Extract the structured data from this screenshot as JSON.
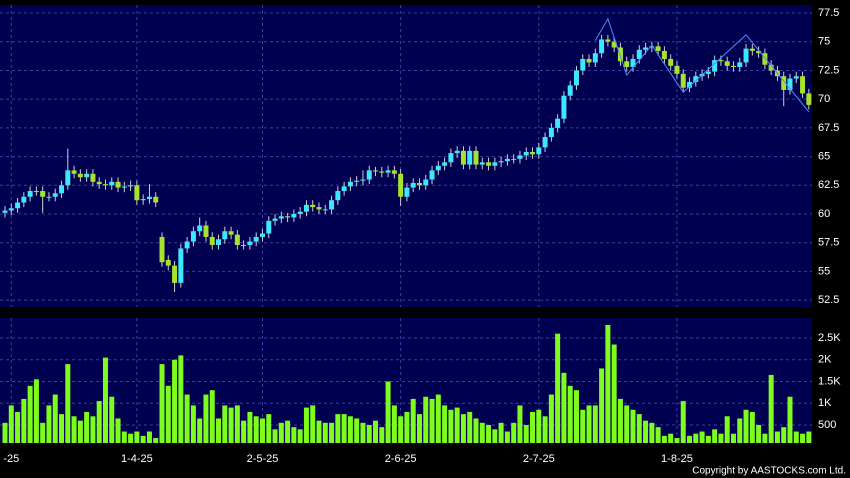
{
  "chart_data": {
    "type": "candlestick",
    "categories": [
      null,
      "-25",
      null,
      null,
      null,
      null,
      null,
      null,
      null,
      null,
      null,
      null,
      null,
      null,
      null,
      null,
      null,
      null,
      null,
      null,
      null,
      "1-4-25",
      null,
      null,
      null,
      null,
      null,
      null,
      null,
      null,
      null,
      null,
      null,
      null,
      null,
      null,
      null,
      null,
      null,
      null,
      null,
      "2-5-25",
      null,
      null,
      null,
      null,
      null,
      null,
      null,
      null,
      null,
      null,
      null,
      null,
      null,
      null,
      null,
      null,
      null,
      null,
      null,
      null,
      null,
      "2-6-25",
      null,
      null,
      null,
      null,
      null,
      null,
      null,
      null,
      null,
      null,
      null,
      null,
      null,
      null,
      null,
      null,
      null,
      null,
      null,
      null,
      null,
      "2-7-25",
      null,
      null,
      null,
      null,
      null,
      null,
      null,
      null,
      null,
      null,
      null,
      null,
      null,
      null,
      null,
      null,
      null,
      null,
      null,
      null,
      null,
      "1-8-25",
      null,
      null,
      null,
      null,
      null,
      null,
      null,
      null,
      null,
      null,
      null,
      null,
      null,
      null,
      null,
      null,
      null,
      null,
      null,
      null,
      null
    ],
    "open": [
      60.1,
      60.3,
      60.5,
      61,
      61.5,
      62,
      62,
      61.5,
      61.5,
      61.8,
      62.5,
      63.8,
      63.5,
      63.2,
      63.5,
      62.8,
      62.6,
      62.5,
      62.8,
      62.3,
      62.4,
      62.5,
      61.2,
      61.3,
      61.5,
      58,
      56,
      55.5,
      54,
      57,
      57.6,
      58.5,
      59,
      58,
      57.3,
      57.8,
      58.5,
      58.2,
      57.3,
      57.3,
      57.6,
      58,
      58.3,
      59.4,
      59.6,
      59.8,
      59.7,
      60,
      60.2,
      60.8,
      60.6,
      60.4,
      60.4,
      61.2,
      62,
      62.4,
      62.8,
      62.9,
      63,
      63.8,
      63.7,
      63.6,
      63.8,
      63.5,
      61.5,
      62.3,
      62.7,
      62.5,
      63,
      63.8,
      64.2,
      64.5,
      65.3,
      65.5,
      64.3,
      65.5,
      64.3,
      64.5,
      64.2,
      64.5,
      64.6,
      64.8,
      64.8,
      65.1,
      65.4,
      65.2,
      65.8,
      66.7,
      67.5,
      68.3,
      70.3,
      71.2,
      72.5,
      73.5,
      73.2,
      74,
      75.2,
      75,
      74.5,
      73.3,
      72.8,
      73.5,
      74.3,
      74.5,
      74.6,
      74.2,
      73.5,
      72.9,
      72.2,
      71,
      71.5,
      72,
      72.2,
      72.4,
      73.4,
      73.3,
      72.9,
      72.8,
      73.2,
      74.4,
      74.2,
      74,
      73,
      72.5,
      72,
      70.8,
      71.8,
      72,
      70.5
    ],
    "high": [
      60.7,
      60.9,
      61.4,
      61.9,
      62.4,
      62.4,
      62.4,
      61.9,
      62.2,
      62.9,
      65.7,
      64.2,
      63.9,
      63.9,
      63.9,
      63.2,
      63,
      63.2,
      63.2,
      62.8,
      62.9,
      62.9,
      61.7,
      62.6,
      61.9,
      58.4,
      56.4,
      55.9,
      57.4,
      58,
      58.9,
      59.7,
      59.4,
      58.4,
      58.2,
      58.9,
      58.9,
      58.6,
      57.7,
      58,
      58.4,
      58.7,
      59.8,
      60,
      60.2,
      60.1,
      60.4,
      60.6,
      61.2,
      61.2,
      61,
      60.8,
      61.6,
      62.4,
      62.8,
      63.2,
      63.3,
      63.8,
      64.2,
      64.1,
      64.1,
      64.2,
      64.2,
      63.9,
      62.7,
      63.1,
      63.1,
      63.4,
      64.2,
      64.6,
      64.9,
      65.7,
      65.9,
      65.9,
      65.9,
      65.9,
      64.9,
      64.9,
      64.9,
      65,
      65.2,
      65.2,
      65.5,
      65.8,
      65.8,
      66.2,
      67.1,
      67.9,
      68.7,
      70.7,
      71.6,
      72.9,
      73.9,
      73.9,
      74.4,
      75.6,
      75.6,
      75.4,
      74.9,
      73.7,
      73.9,
      74.7,
      74.9,
      75,
      75,
      74.6,
      73.9,
      73.3,
      72.6,
      71.9,
      72.4,
      72.6,
      72.8,
      73.8,
      73.8,
      73.7,
      73.3,
      73.6,
      74.8,
      74.8,
      74.6,
      74.4,
      73.4,
      72.9,
      72.4,
      72.2,
      72.4,
      72.4,
      70.9
    ],
    "low": [
      59.7,
      59.9,
      60.1,
      60.6,
      61.1,
      61.6,
      60.1,
      61.1,
      61.1,
      61.4,
      62.1,
      63.1,
      62.8,
      62.8,
      62.4,
      62.2,
      62.1,
      62.1,
      61.9,
      61.9,
      62,
      60.8,
      60.8,
      60.9,
      60.6,
      55.4,
      55.1,
      53.2,
      53.6,
      56.6,
      57.2,
      58.1,
      57.6,
      56.9,
      56.9,
      57.4,
      57.8,
      56.9,
      56.9,
      56.9,
      57.2,
      57.6,
      57.9,
      59,
      59.2,
      59.3,
      59.3,
      59.6,
      59.8,
      60.2,
      60,
      60,
      60,
      60.8,
      61.6,
      62,
      62.4,
      62.5,
      62.6,
      63.3,
      63.2,
      63.2,
      63.1,
      60.7,
      61.1,
      61.9,
      62.1,
      62.1,
      62.6,
      63.4,
      63.8,
      64.1,
      64.9,
      63.9,
      63.9,
      63.9,
      63.9,
      63.8,
      63.8,
      64.1,
      64.2,
      64.4,
      64.4,
      64.7,
      64.8,
      64.8,
      65.4,
      66.3,
      67.1,
      67.9,
      69.9,
      70.8,
      72.1,
      72.8,
      72.8,
      73.6,
      74.6,
      74.1,
      72.9,
      72.4,
      72.4,
      73.1,
      73.9,
      74.1,
      73.8,
      73.1,
      72.5,
      71.8,
      70.6,
      70.6,
      71.1,
      71.6,
      71.8,
      72,
      72.9,
      72.5,
      72.4,
      72.4,
      72.8,
      73.8,
      73.6,
      72.6,
      72.1,
      71.6,
      69.4,
      70.4,
      71.4,
      70.1,
      69.1
    ],
    "close": [
      60.3,
      60.5,
      61,
      61.5,
      62,
      62,
      61.5,
      61.5,
      61.8,
      62.5,
      63.8,
      63.5,
      63.2,
      63.5,
      62.8,
      62.6,
      62.5,
      62.8,
      62.3,
      62.4,
      62.5,
      61.2,
      61.3,
      61.5,
      61,
      55.8,
      55.5,
      54,
      57,
      57.6,
      58.5,
      59,
      58,
      57.3,
      57.8,
      58.5,
      58.2,
      57.3,
      57.3,
      57.6,
      58,
      58.3,
      59.4,
      59.6,
      59.8,
      59.7,
      60,
      60.2,
      60.8,
      60.6,
      60.4,
      60.4,
      61.2,
      62,
      62.4,
      62.8,
      62.9,
      63,
      63.8,
      63.7,
      63.6,
      63.8,
      63.5,
      61.5,
      62.3,
      62.7,
      62.5,
      63,
      63.8,
      64.2,
      64.5,
      65.3,
      65.5,
      64.3,
      65.5,
      64.3,
      64.5,
      64.2,
      64.5,
      64.6,
      64.8,
      64.8,
      65.1,
      65.4,
      65.2,
      65.8,
      66.7,
      67.5,
      68.3,
      70.3,
      71.2,
      72.5,
      73.5,
      73.2,
      74,
      75.2,
      75,
      74.5,
      73.3,
      72.8,
      73.5,
      74.3,
      74.5,
      74.6,
      74.2,
      73.5,
      72.9,
      72.2,
      71,
      71.5,
      72,
      72.2,
      72.4,
      73.4,
      73.3,
      72.9,
      72.8,
      73.2,
      74.4,
      74.2,
      74,
      73,
      72.5,
      72,
      70.8,
      71.8,
      72,
      70.5,
      69.5
    ],
    "volume": [
      550,
      950,
      800,
      1100,
      1400,
      1550,
      550,
      950,
      1200,
      750,
      1900,
      700,
      600,
      800,
      700,
      1050,
      2050,
      1150,
      650,
      350,
      300,
      350,
      250,
      350,
      200,
      1900,
      1400,
      2000,
      2100,
      1200,
      950,
      650,
      1200,
      1300,
      650,
      950,
      900,
      950,
      600,
      800,
      700,
      650,
      750,
      400,
      550,
      600,
      450,
      400,
      900,
      950,
      600,
      550,
      550,
      750,
      750,
      700,
      650,
      550,
      500,
      600,
      450,
      1500,
      950,
      700,
      800,
      1100,
      750,
      1150,
      1100,
      1200,
      950,
      850,
      900,
      750,
      800,
      650,
      550,
      500,
      400,
      550,
      350,
      550,
      950,
      500,
      800,
      850,
      700,
      1200,
      2600,
      1700,
      1400,
      1300,
      850,
      950,
      950,
      1800,
      2800,
      2350,
      1100,
      950,
      850,
      750,
      600,
      550,
      450,
      250,
      300,
      200,
      1050,
      250,
      300,
      350,
      250,
      400,
      300,
      700,
      300,
      650,
      850,
      800,
      500,
      300,
      1650,
      350,
      450,
      1150,
      350,
      300,
      350
    ],
    "up_color": "#3ee6ff",
    "down_color": "#a6e22e",
    "volume_color": "#7dfc1e",
    "overlay_color": "#4f8cff",
    "overlay": {
      "x": [
        94,
        96,
        99,
        103,
        108,
        118,
        128
      ],
      "values": [
        75.1,
        77,
        72.1,
        74.7,
        70.6,
        75.6,
        68.9
      ]
    },
    "ylim": [
      51.9,
      78.2
    ],
    "yticks": [
      52.5,
      55,
      57.5,
      60,
      62.5,
      65,
      67.5,
      70,
      72.5,
      75,
      77.5
    ],
    "volume_ylim": [
      86,
      2960
    ],
    "volume_yticks": [
      500,
      {
        "value": 1000,
        "label": "1K"
      },
      {
        "value": 1500,
        "label": "1.5K"
      },
      {
        "value": 2000,
        "label": "2K"
      },
      {
        "value": 2500,
        "label": "2.5K"
      }
    ],
    "grid": true
  },
  "copyright": "Copyright by AASTOCKS.com Ltd."
}
